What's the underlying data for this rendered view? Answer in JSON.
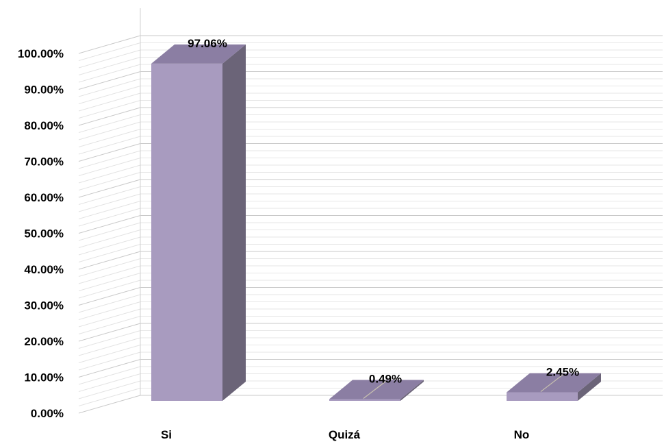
{
  "chart_data": {
    "type": "bar",
    "style": "3d-column",
    "categories": [
      "Si",
      "Quizá",
      "No"
    ],
    "values": [
      97.06,
      0.49,
      2.45
    ],
    "data_labels": [
      "97.06%",
      "0.49%",
      "2.45%"
    ],
    "ylim": [
      0,
      100
    ],
    "y_ticks": [
      0,
      10,
      20,
      30,
      40,
      50,
      60,
      70,
      80,
      90,
      100
    ],
    "y_tick_labels": [
      "0.00%",
      "10.00%",
      "20.00%",
      "30.00%",
      "40.00%",
      "50.00%",
      "60.00%",
      "70.00%",
      "80.00%",
      "90.00%",
      "100.00%"
    ],
    "grid": true,
    "legend": "none",
    "colors": {
      "front": "#a89bbf",
      "side": "#6b6478",
      "top": "#8b7ea3",
      "grid": "#d4d4d4"
    }
  }
}
